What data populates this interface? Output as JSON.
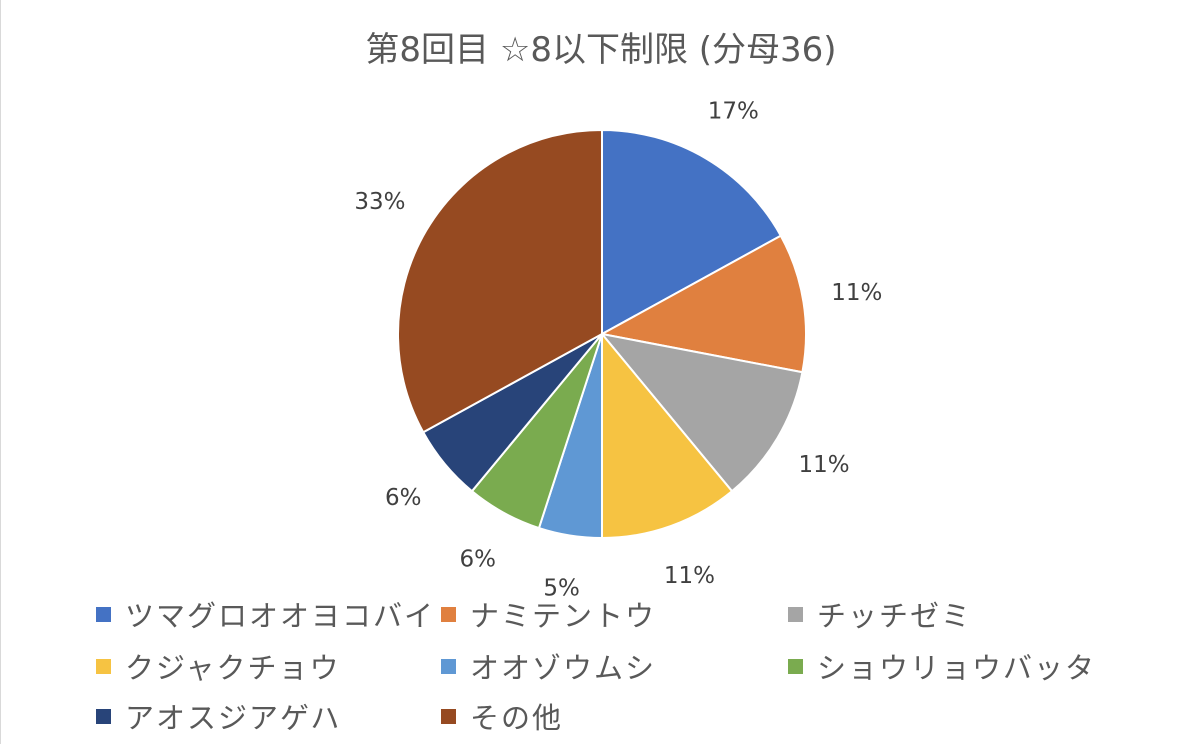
{
  "chart_data": {
    "type": "pie",
    "title": "第8回目 ☆8以下制限 (分母36)",
    "categories": [
      "ツマグロオオヨコバイ",
      "ナミテントウ",
      "チッチゼミ",
      "クジャクチョウ",
      "オオゾウムシ",
      "ショウリョウバッタ",
      "アオスジアゲハ",
      "その他"
    ],
    "values": [
      17,
      11,
      11,
      11,
      5,
      6,
      6,
      33
    ],
    "labels": [
      "17%",
      "11%",
      "11%",
      "11%",
      "5%",
      "6%",
      "6%",
      "33%"
    ],
    "colors": [
      "#4472c4",
      "#e0803f",
      "#a5a5a5",
      "#f6c342",
      "#5f98d4",
      "#7aab4f",
      "#284479",
      "#964a21"
    ],
    "legend_position": "bottom"
  }
}
